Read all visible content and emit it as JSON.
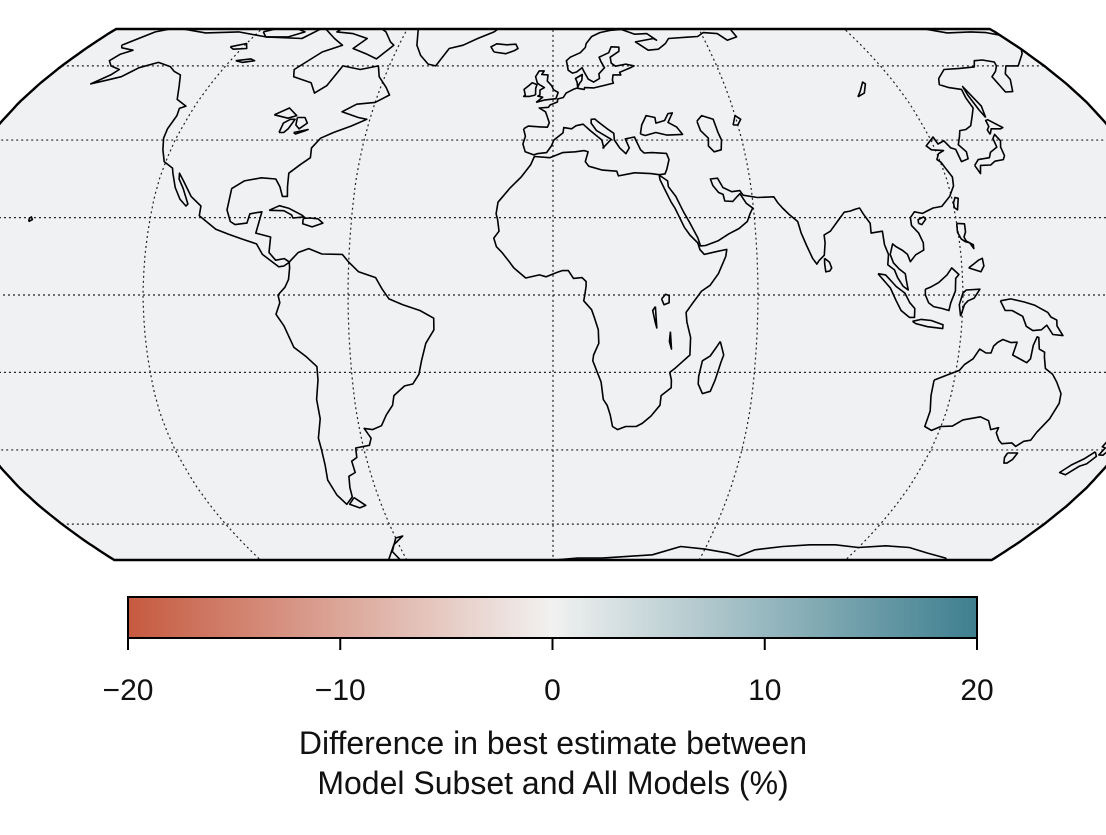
{
  "map": {
    "projection": "robinson",
    "ocean_color": "#f0f1f3",
    "land_color": "#f0f1f3",
    "coastline_color": "#000000",
    "graticule": {
      "lon_step": 60,
      "lat_step": 20,
      "style": "dotted"
    }
  },
  "colorbar": {
    "min": -20,
    "max": 20,
    "colors": {
      "low": "#c65a40",
      "mid": "#f1f1f0",
      "high": "#3e7f8f"
    },
    "ticks": [
      "−20",
      "−10",
      "0",
      "10",
      "20"
    ],
    "tick_values": [
      -20,
      -10,
      0,
      10,
      20
    ],
    "label_line1": "Difference in best estimate between",
    "label_line2": "Model Subset and All Models (%)"
  }
}
